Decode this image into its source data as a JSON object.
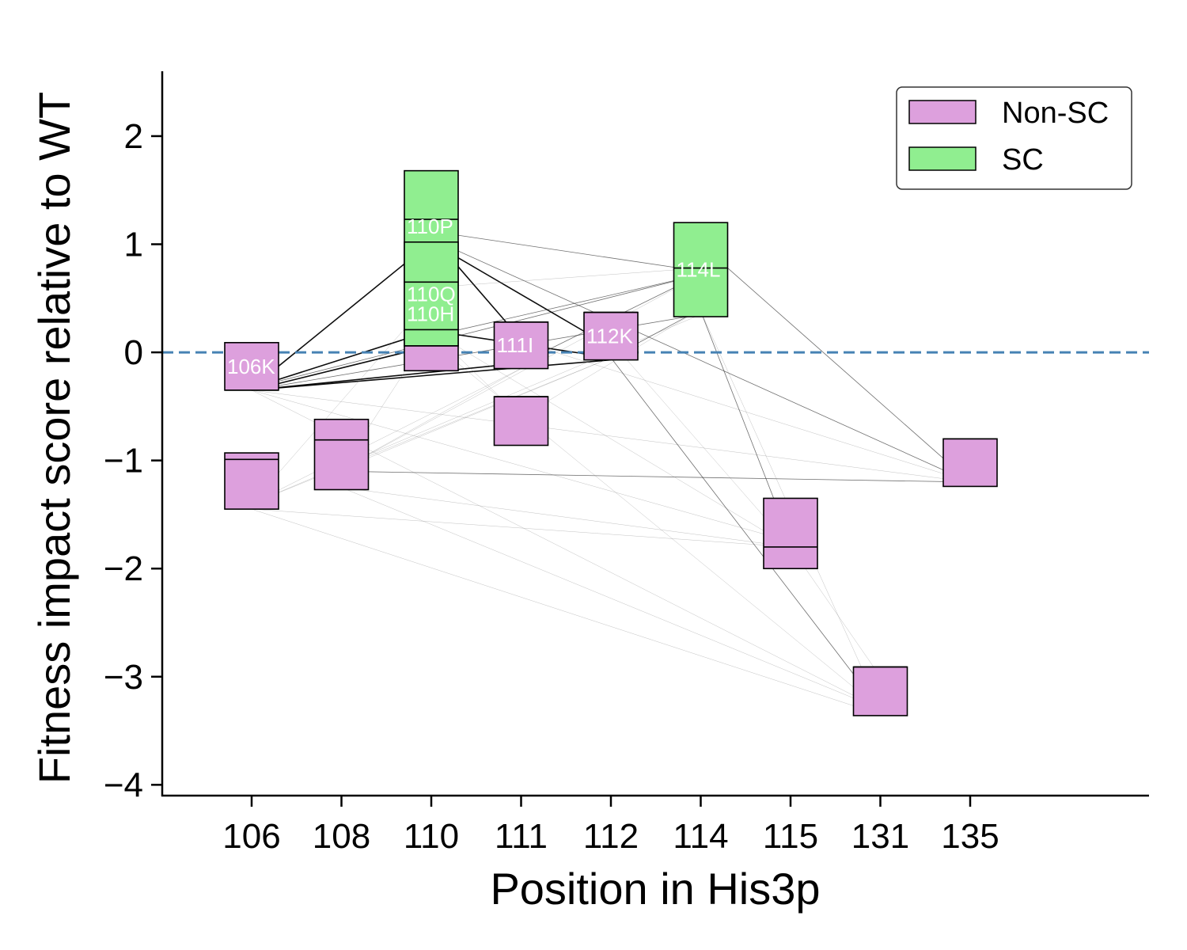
{
  "chart_data": {
    "type": "box",
    "xlabel": "Position in His3p",
    "ylabel": "Fitness impact score relative to  WT",
    "categories": [
      "106",
      "108",
      "110",
      "111",
      "112",
      "114",
      "115",
      "131",
      "135"
    ],
    "yticks": [
      2,
      1,
      0,
      -1,
      -2,
      -3,
      -4
    ],
    "ytick_labels": [
      "2",
      "1",
      "0",
      "−1",
      "−2",
      "−3",
      "−4"
    ],
    "ylim": [
      -4.1,
      2.6
    ],
    "reference_line": {
      "y": 0,
      "style": "dashed",
      "color": "#4682b4"
    },
    "colors": {
      "non_sc": "#dda0dd",
      "sc": "#90ee90",
      "reference": "#4682b4"
    },
    "legend": {
      "position": "top-right",
      "entries": [
        {
          "label": "Non-SC",
          "color": "#dda0dd"
        },
        {
          "label": "SC",
          "color": "#90ee90"
        }
      ]
    },
    "boxes": [
      {
        "category": "106",
        "type": "Non-SC",
        "low": -0.35,
        "high": 0.09,
        "mid": -0.35,
        "label": "106K"
      },
      {
        "category": "106",
        "type": "Non-SC",
        "low": -1.45,
        "high": -0.93,
        "mid": -0.99,
        "label": ""
      },
      {
        "category": "108",
        "type": "Non-SC",
        "low": -1.27,
        "high": -0.62,
        "mid": -0.81,
        "label": ""
      },
      {
        "category": "110",
        "type": "SC",
        "low": 0.65,
        "high": 1.68,
        "mid": 1.23,
        "label": "110P"
      },
      {
        "category": "110",
        "type": "SC",
        "low": 0.06,
        "high": 1.02,
        "mid": 0.65,
        "label": "110Q"
      },
      {
        "category": "110",
        "type": "SC",
        "low": 0.06,
        "high": 0.65,
        "mid": 0.21,
        "label": "110H"
      },
      {
        "category": "110",
        "type": "Non-SC",
        "low": -0.17,
        "high": 0.06,
        "mid": 0.06,
        "label": ""
      },
      {
        "category": "111",
        "type": "Non-SC",
        "low": -0.15,
        "high": 0.28,
        "mid": 0.28,
        "label": "111I"
      },
      {
        "category": "111",
        "type": "Non-SC",
        "low": -0.86,
        "high": -0.41,
        "mid": -0.41,
        "label": ""
      },
      {
        "category": "112",
        "type": "Non-SC",
        "low": -0.07,
        "high": 0.37,
        "mid": 0.37,
        "label": "112K"
      },
      {
        "category": "114",
        "type": "SC",
        "low": 0.33,
        "high": 1.2,
        "mid": 0.78,
        "label": "114L"
      },
      {
        "category": "115",
        "type": "Non-SC",
        "low": -2.0,
        "high": -1.35,
        "mid": -1.8,
        "label": ""
      },
      {
        "category": "131",
        "type": "Non-SC",
        "low": -3.36,
        "high": -2.91,
        "mid": -2.91,
        "label": ""
      },
      {
        "category": "135",
        "type": "Non-SC",
        "low": -1.24,
        "high": -0.8,
        "mid": -0.8,
        "label": ""
      }
    ],
    "connections": [
      {
        "from": [
          "106",
          -0.33
        ],
        "to": [
          "110",
          1.02
        ],
        "weight": "strong"
      },
      {
        "from": [
          "106",
          -0.33
        ],
        "to": [
          "110",
          0.2
        ],
        "weight": "strong"
      },
      {
        "from": [
          "106",
          -0.35
        ],
        "to": [
          "110",
          0.06
        ],
        "weight": "strong"
      },
      {
        "from": [
          "106",
          -0.35
        ],
        "to": [
          "111",
          -0.1
        ],
        "weight": "strong"
      },
      {
        "from": [
          "106",
          -0.35
        ],
        "to": [
          "112",
          -0.07
        ],
        "weight": "strong"
      },
      {
        "from": [
          "106",
          -0.33
        ],
        "to": [
          "114",
          0.72
        ],
        "weight": "medium"
      },
      {
        "from": [
          "106",
          -0.35
        ],
        "to": [
          "114",
          0.35
        ],
        "weight": "medium"
      },
      {
        "from": [
          "106",
          -0.35
        ],
        "to": [
          "115",
          -1.75
        ],
        "weight": "faint"
      },
      {
        "from": [
          "106",
          -0.35
        ],
        "to": [
          "131",
          -3.3
        ],
        "weight": "faint"
      },
      {
        "from": [
          "106",
          -0.35
        ],
        "to": [
          "135",
          -1.2
        ],
        "weight": "faint"
      },
      {
        "from": [
          "106",
          -1.4
        ],
        "to": [
          "110",
          0.5
        ],
        "weight": "faint"
      },
      {
        "from": [
          "106",
          -1.4
        ],
        "to": [
          "111",
          -0.15
        ],
        "weight": "faint"
      },
      {
        "from": [
          "106",
          -1.4
        ],
        "to": [
          "112",
          -0.05
        ],
        "weight": "faint"
      },
      {
        "from": [
          "106",
          -1.4
        ],
        "to": [
          "114",
          0.35
        ],
        "weight": "faint"
      },
      {
        "from": [
          "106",
          -1.45
        ],
        "to": [
          "115",
          -1.8
        ],
        "weight": "faint"
      },
      {
        "from": [
          "106",
          -1.45
        ],
        "to": [
          "131",
          -3.35
        ],
        "weight": "faint"
      },
      {
        "from": [
          "108",
          -1.08
        ],
        "to": [
          "110",
          0.2
        ],
        "weight": "faint"
      },
      {
        "from": [
          "108",
          -1.08
        ],
        "to": [
          "111",
          -0.15
        ],
        "weight": "faint"
      },
      {
        "from": [
          "108",
          -1.08
        ],
        "to": [
          "112",
          -0.05
        ],
        "weight": "faint"
      },
      {
        "from": [
          "108",
          -1.08
        ],
        "to": [
          "114",
          0.72
        ],
        "weight": "faint"
      },
      {
        "from": [
          "108",
          -1.1
        ],
        "to": [
          "135",
          -1.2
        ],
        "weight": "medium"
      },
      {
        "from": [
          "108",
          -1.25
        ],
        "to": [
          "115",
          -1.8
        ],
        "weight": "faint"
      },
      {
        "from": [
          "108",
          -1.25
        ],
        "to": [
          "131",
          -3.3
        ],
        "weight": "faint"
      },
      {
        "from": [
          "110",
          1.12
        ],
        "to": [
          "114",
          0.75
        ],
        "weight": "medium"
      },
      {
        "from": [
          "110",
          1.08
        ],
        "to": [
          "111",
          0.12
        ],
        "weight": "strong"
      },
      {
        "from": [
          "110",
          1.02
        ],
        "to": [
          "112",
          0.05
        ],
        "weight": "strong"
      },
      {
        "from": [
          "110",
          1.05
        ],
        "to": [
          "135",
          -1.2
        ],
        "weight": "medium"
      },
      {
        "from": [
          "110",
          0.2
        ],
        "to": [
          "112",
          -0.05
        ],
        "weight": "strong"
      },
      {
        "from": [
          "110",
          0.15
        ],
        "to": [
          "114",
          0.72
        ],
        "weight": "medium"
      },
      {
        "from": [
          "110",
          0.6
        ],
        "to": [
          "114",
          0.78
        ],
        "weight": "faint"
      },
      {
        "from": [
          "110",
          0.2
        ],
        "to": [
          "115",
          -1.8
        ],
        "weight": "faint"
      },
      {
        "from": [
          "110",
          0.1
        ],
        "to": [
          "131",
          -3.3
        ],
        "weight": "faint"
      },
      {
        "from": [
          "111",
          -0.1
        ],
        "to": [
          "114",
          0.72
        ],
        "weight": "medium"
      },
      {
        "from": [
          "111",
          -0.6
        ],
        "to": [
          "114",
          0.4
        ],
        "weight": "faint"
      },
      {
        "from": [
          "111",
          -0.6
        ],
        "to": [
          "110",
          0.2
        ],
        "weight": "faint"
      },
      {
        "from": [
          "111",
          0.1
        ],
        "to": [
          "135",
          -1.2
        ],
        "weight": "faint"
      },
      {
        "from": [
          "112",
          -0.05
        ],
        "to": [
          "114",
          0.4
        ],
        "weight": "medium"
      },
      {
        "from": [
          "112",
          -0.05
        ],
        "to": [
          "131",
          -3.3
        ],
        "weight": "medium"
      },
      {
        "from": [
          "112",
          0.1
        ],
        "to": [
          "115",
          -1.8
        ],
        "weight": "faint"
      },
      {
        "from": [
          "114",
          0.38
        ],
        "to": [
          "115",
          -1.75
        ],
        "weight": "medium"
      },
      {
        "from": [
          "114",
          0.38
        ],
        "to": [
          "131",
          -3.3
        ],
        "weight": "faint"
      },
      {
        "from": [
          "114",
          1.0
        ],
        "to": [
          "135",
          -1.2
        ],
        "weight": "medium"
      },
      {
        "from": [
          "115",
          -1.8
        ],
        "to": [
          "131",
          -3.0
        ],
        "weight": "faint"
      }
    ]
  }
}
